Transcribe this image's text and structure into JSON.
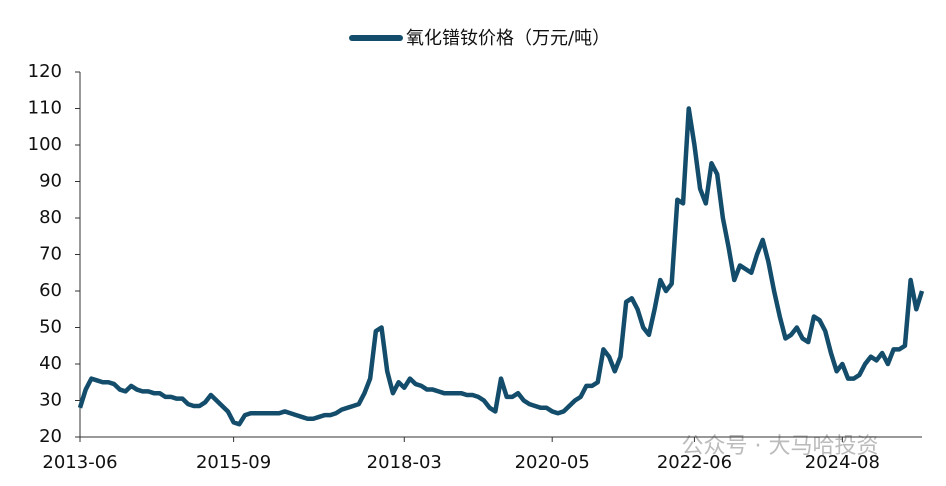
{
  "chart_data": {
    "type": "line",
    "x": [
      "2013-06",
      "2013-07",
      "2013-08",
      "2013-09",
      "2013-10",
      "2013-11",
      "2013-12",
      "2014-01",
      "2014-02",
      "2014-03",
      "2014-04",
      "2014-05",
      "2014-06",
      "2014-07",
      "2014-08",
      "2014-09",
      "2014-10",
      "2014-11",
      "2014-12",
      "2015-01",
      "2015-02",
      "2015-03",
      "2015-04",
      "2015-05",
      "2015-06",
      "2015-07",
      "2015-08",
      "2015-09",
      "2015-10",
      "2015-11",
      "2015-12",
      "2016-01",
      "2016-02",
      "2016-03",
      "2016-04",
      "2016-05",
      "2016-06",
      "2016-07",
      "2016-08",
      "2016-09",
      "2016-10",
      "2016-11",
      "2016-12",
      "2017-01",
      "2017-02",
      "2017-03",
      "2017-04",
      "2017-05",
      "2017-06",
      "2017-07",
      "2017-08",
      "2017-09",
      "2017-10",
      "2017-11",
      "2017-12",
      "2018-01",
      "2018-02",
      "2018-03",
      "2018-04",
      "2018-05",
      "2018-06",
      "2018-07",
      "2018-08",
      "2018-09",
      "2018-10",
      "2018-11",
      "2018-12",
      "2019-01",
      "2019-02",
      "2019-03",
      "2019-04",
      "2019-05",
      "2019-06",
      "2019-07",
      "2019-08",
      "2019-09",
      "2019-10",
      "2019-11",
      "2019-12",
      "2020-01",
      "2020-02",
      "2020-03",
      "2020-04",
      "2020-05",
      "2020-06",
      "2020-07",
      "2020-08",
      "2020-09",
      "2020-10",
      "2020-11",
      "2020-12",
      "2021-01",
      "2021-02",
      "2021-03",
      "2021-04",
      "2021-05",
      "2021-06",
      "2021-07",
      "2021-08",
      "2021-09",
      "2021-10",
      "2021-11",
      "2021-12",
      "2022-01",
      "2022-02",
      "2022-03",
      "2022-04",
      "2022-05",
      "2022-06",
      "2022-07",
      "2022-08",
      "2022-09",
      "2022-10",
      "2022-11",
      "2022-12",
      "2023-01",
      "2023-02",
      "2023-03",
      "2023-04",
      "2023-05",
      "2023-06",
      "2023-07",
      "2023-08",
      "2023-09",
      "2023-10",
      "2023-11",
      "2023-12",
      "2024-01",
      "2024-02",
      "2024-03",
      "2024-04",
      "2024-05",
      "2024-06",
      "2024-07",
      "2024-08",
      "2024-09",
      "2024-10",
      "2024-11",
      "2024-12",
      "2025-01",
      "2025-02",
      "2025-03",
      "2025-04",
      "2025-05",
      "2025-06",
      "2025-07",
      "2025-08",
      "2025-09",
      "2025-10"
    ],
    "series": [
      {
        "name": "氧化镨钕价格（万元/吨）",
        "color": "#134d6b",
        "values": [
          28,
          33,
          36,
          35.5,
          35,
          35,
          34.5,
          33,
          32.5,
          34,
          33,
          32.5,
          32.5,
          32,
          32,
          31,
          31,
          30.5,
          30.5,
          29,
          28.5,
          28.5,
          29.5,
          31.5,
          30,
          28.5,
          27,
          24,
          23.5,
          26,
          26.5,
          26.5,
          26.5,
          26.5,
          26.5,
          26.5,
          27,
          26.5,
          26,
          25.5,
          25,
          25,
          25.5,
          26,
          26,
          26.5,
          27.5,
          28,
          28.5,
          29,
          32,
          36,
          49,
          50,
          38,
          32,
          35,
          33.5,
          36,
          34.5,
          34,
          33,
          33,
          32.5,
          32,
          32,
          32,
          32,
          31.5,
          31.5,
          31,
          30,
          28,
          27,
          36,
          31,
          31,
          32,
          30,
          29,
          28.5,
          28,
          28,
          27,
          26.5,
          27,
          28.5,
          30,
          31,
          34,
          34,
          35,
          44,
          42,
          38,
          42,
          57,
          58,
          55,
          50,
          48,
          55,
          63,
          60,
          62,
          85,
          84,
          110,
          100,
          88,
          84,
          95,
          92,
          80,
          72,
          63,
          67,
          66,
          65,
          70,
          74,
          68,
          60,
          53,
          47,
          48,
          50,
          47,
          46,
          53,
          52,
          49,
          43,
          38,
          40,
          36,
          36,
          37,
          40,
          42,
          41,
          43,
          40,
          44,
          44,
          45,
          63,
          55,
          60
        ]
      }
    ],
    "ylim": [
      20,
      120
    ],
    "yticks": [
      20,
      30,
      40,
      50,
      60,
      70,
      80,
      90,
      100,
      110,
      120
    ],
    "xticks": [
      "2013-06",
      "2015-09",
      "2018-03",
      "2020-05",
      "2022-06",
      "2024-08"
    ],
    "legend": "top",
    "watermark": "公众号 · 大马哈投资"
  }
}
